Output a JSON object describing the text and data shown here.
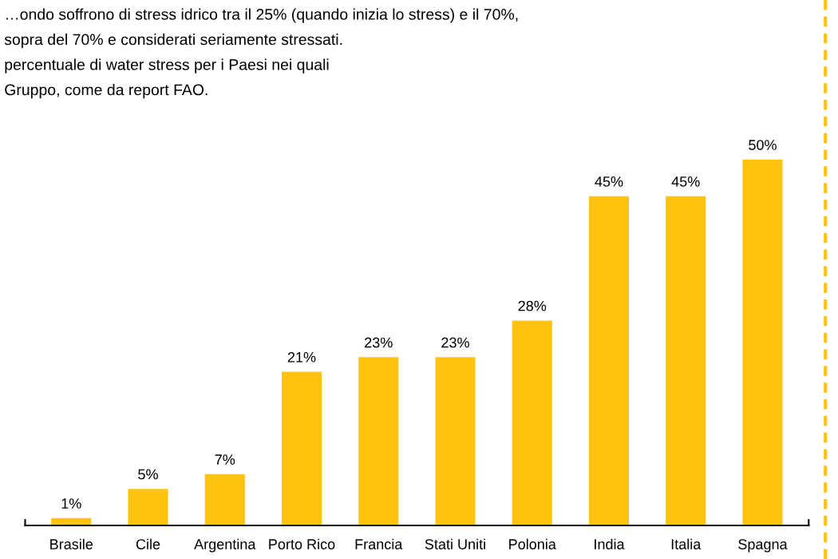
{
  "chart_data": {
    "type": "bar",
    "categories": [
      "Brasile",
      "Cile",
      "Argentina",
      "Porto Rico",
      "Francia",
      "Stati Uniti",
      "Polonia",
      "India",
      "Italia",
      "Spagna"
    ],
    "values": [
      1,
      5,
      7,
      21,
      23,
      23,
      28,
      45,
      45,
      50
    ],
    "value_labels": [
      "1%",
      "5%",
      "7%",
      "21%",
      "23%",
      "23%",
      "28%",
      "45%",
      "45%",
      "50%"
    ],
    "color": "#ffc20e",
    "grid": false,
    "annotations": [
      "…ondo soffrono di stress idrico tra il 25% (quando inizia lo stress) e il 70%,",
      "sopra del 70% e considerati seriamente stressati.",
      "percentuale di water stress per i Paesi nei quali",
      "Gruppo, come da report FAO."
    ]
  }
}
